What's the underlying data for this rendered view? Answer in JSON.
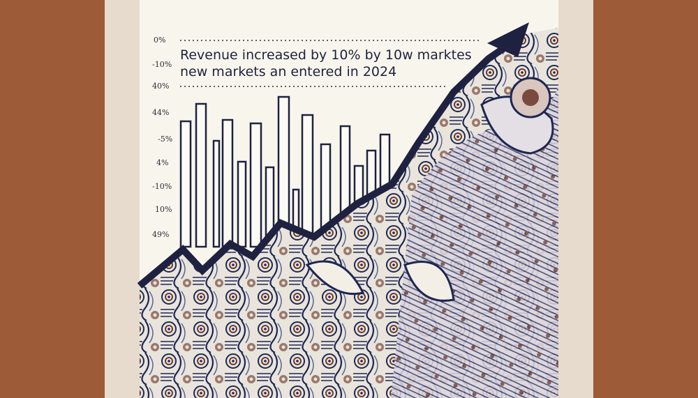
{
  "caption": {
    "lines": [
      "Revenue increased by 10% by 10w marktes",
      "new markets an entered in 2024"
    ]
  },
  "axis_labels": [
    "0%",
    "-10%",
    "40%",
    "44%",
    "-5%",
    "4%",
    "-10%",
    "10%",
    "49%"
  ]
}
